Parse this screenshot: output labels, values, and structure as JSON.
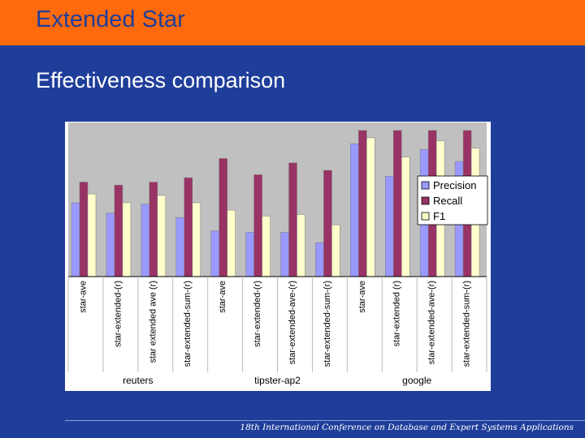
{
  "header": {
    "title": "Extended Star"
  },
  "slide": {
    "subtitle": "Effectiveness comparison"
  },
  "footer": {
    "text": "18th International Conference on Database and Expert Systems Applications"
  },
  "colors": {
    "header_bg": "#ff6a0c",
    "slide_bg": "#1f3e9a",
    "plot_bg": "#c0c0c0",
    "precision": "#9999ff",
    "recall": "#993366",
    "f1": "#ffffcc"
  },
  "chart_data": {
    "type": "bar",
    "categories": [
      "star-ave",
      "star-extended-(r)",
      "star extended ave (r)",
      "star-extended-sum-(r)",
      "star-ave",
      "star-extended-(r)",
      "star-extended-ave-(r)",
      "star-extended-sum-(r)",
      "star-ave",
      "star-extended (r)",
      "star-extended-ave-(r)",
      "star-extended-sum-(r)"
    ],
    "groups": [
      {
        "label": "reuters",
        "count": 4
      },
      {
        "label": "tipster-ap2",
        "count": 4
      },
      {
        "label": "google",
        "count": 4
      }
    ],
    "series": [
      {
        "name": "Precision",
        "color": "#9999ff",
        "values": [
          0.5,
          0.43,
          0.49,
          0.4,
          0.31,
          0.3,
          0.3,
          0.23,
          0.9,
          0.68,
          0.86,
          0.78
        ]
      },
      {
        "name": "Recall",
        "color": "#993366",
        "values": [
          0.64,
          0.62,
          0.64,
          0.67,
          0.8,
          0.69,
          0.77,
          0.72,
          0.99,
          0.99,
          0.99,
          0.99
        ]
      },
      {
        "name": "F1",
        "color": "#ffffcc",
        "values": [
          0.56,
          0.5,
          0.55,
          0.5,
          0.45,
          0.41,
          0.42,
          0.35,
          0.94,
          0.81,
          0.92,
          0.87
        ]
      }
    ],
    "yticks": [
      "0",
      "0.2",
      "0.4",
      "0.6",
      "0.8",
      "1"
    ],
    "ylim": [
      0,
      1
    ],
    "grid": false,
    "legend": "right"
  }
}
